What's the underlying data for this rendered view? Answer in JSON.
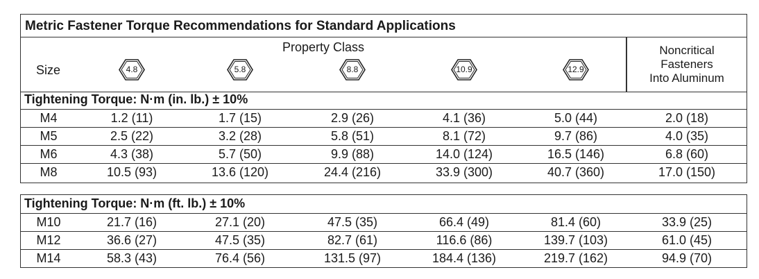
{
  "title": "Metric Fastener Torque Recommendations for Standard Applications",
  "header": {
    "property_class": "Property Class",
    "size": "Size",
    "noncritical": [
      "Noncritical",
      "Fasteners",
      "Into Aluminum"
    ],
    "classes": [
      "4.8",
      "5.8",
      "8.8",
      "10.9",
      "12.9"
    ]
  },
  "section_inlb": {
    "title": "Tightening Torque: N·m (in. lb.) ± 10%",
    "rows": [
      {
        "size": "M4",
        "values": [
          "1.2 (11)",
          "1.7 (15)",
          "2.9 (26)",
          "4.1 (36)",
          "5.0 (44)",
          "2.0 (18)"
        ]
      },
      {
        "size": "M5",
        "values": [
          "2.5 (22)",
          "3.2 (28)",
          "5.8 (51)",
          "8.1 (72)",
          "9.7 (86)",
          "4.0 (35)"
        ]
      },
      {
        "size": "M6",
        "values": [
          "4.3 (38)",
          "5.7 (50)",
          "9.9 (88)",
          "14.0 (124)",
          "16.5 (146)",
          "6.8 (60)"
        ]
      },
      {
        "size": "M8",
        "values": [
          "10.5 (93)",
          "13.6 (120)",
          "24.4 (216)",
          "33.9 (300)",
          "40.7 (360)",
          "17.0 (150)"
        ]
      }
    ]
  },
  "section_ftlb": {
    "title": "Tightening Torque: N·m (ft. lb.) ± 10%",
    "rows": [
      {
        "size": "M10",
        "values": [
          "21.7 (16)",
          "27.1 (20)",
          "47.5 (35)",
          "66.4 (49)",
          "81.4 (60)",
          "33.9 (25)"
        ]
      },
      {
        "size": "M12",
        "values": [
          "36.6 (27)",
          "47.5 (35)",
          "82.7 (61)",
          "116.6 (86)",
          "139.7 (103)",
          "61.0 (45)"
        ]
      },
      {
        "size": "M14",
        "values": [
          "58.3 (43)",
          "76.4 (56)",
          "131.5 (97)",
          "184.4 (136)",
          "219.7 (162)",
          "94.9 (70)"
        ]
      }
    ]
  }
}
